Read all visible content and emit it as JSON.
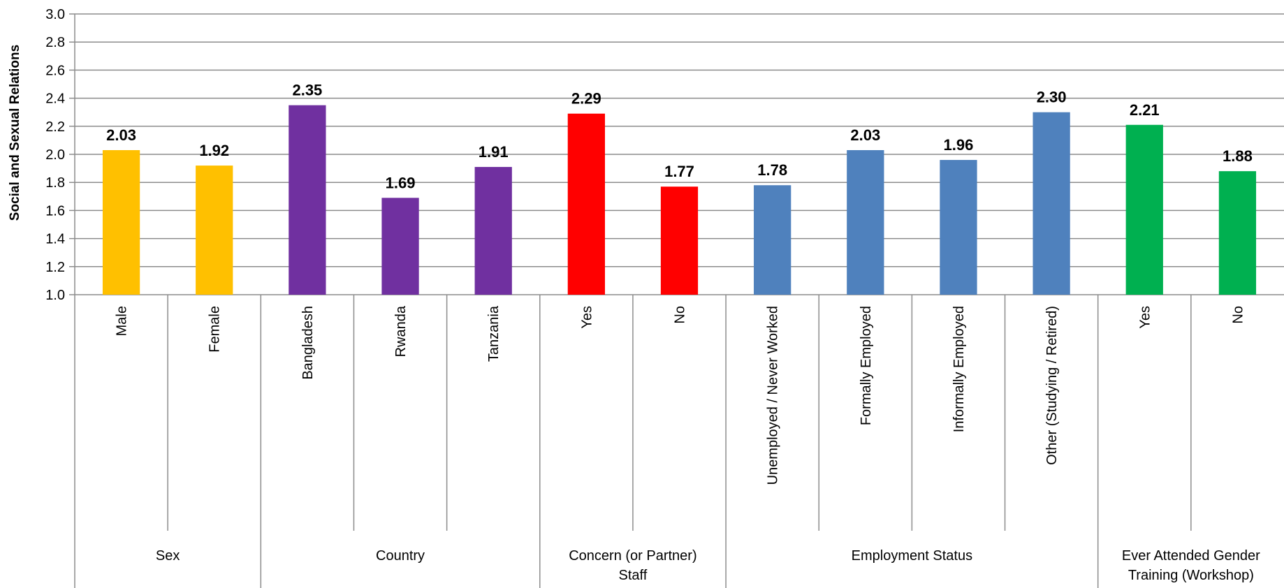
{
  "chart_data": {
    "type": "bar",
    "ylabel": "Social and Sexual Relations",
    "ylim": [
      1.0,
      3.0
    ],
    "yticks": [
      "1.0",
      "1.2",
      "1.4",
      "1.6",
      "1.8",
      "2.0",
      "2.2",
      "2.4",
      "2.6",
      "2.8",
      "3.0"
    ],
    "grid": true,
    "groups": [
      {
        "label": "Sex",
        "color": "#FFC000",
        "items": [
          {
            "category": "Male",
            "value": 2.03,
            "label": "2.03"
          },
          {
            "category": "Female",
            "value": 1.92,
            "label": "1.92"
          }
        ]
      },
      {
        "label": "Country",
        "color": "#7030A0",
        "items": [
          {
            "category": "Bangladesh",
            "value": 2.35,
            "label": "2.35"
          },
          {
            "category": "Rwanda",
            "value": 1.69,
            "label": "1.69"
          },
          {
            "category": "Tanzania",
            "value": 1.91,
            "label": "1.91"
          }
        ]
      },
      {
        "label": "Concern (or Partner) Staff",
        "label_lines": [
          "Concern (or Partner)",
          "Staff"
        ],
        "color": "#FF0000",
        "items": [
          {
            "category": "Yes",
            "value": 2.29,
            "label": "2.29"
          },
          {
            "category": "No",
            "value": 1.77,
            "label": "1.77"
          }
        ]
      },
      {
        "label": "Employment Status",
        "color": "#4F81BD",
        "items": [
          {
            "category": "Unemployed / Never Worked",
            "value": 1.78,
            "label": "1.78"
          },
          {
            "category": "Formally Employed",
            "value": 2.03,
            "label": "2.03"
          },
          {
            "category": "Informally Employed",
            "value": 1.96,
            "label": "1.96"
          },
          {
            "category": "Other (Studying / Retired)",
            "value": 2.3,
            "label": "2.30"
          }
        ]
      },
      {
        "label": "Ever Attended Gender Training (Workshop)",
        "label_lines": [
          "Ever Attended Gender",
          "Training (Workshop)"
        ],
        "color": "#00B050",
        "items": [
          {
            "category": "Yes",
            "value": 2.21,
            "label": "2.21"
          },
          {
            "category": "No",
            "value": 1.88,
            "label": "1.88"
          }
        ]
      }
    ]
  }
}
